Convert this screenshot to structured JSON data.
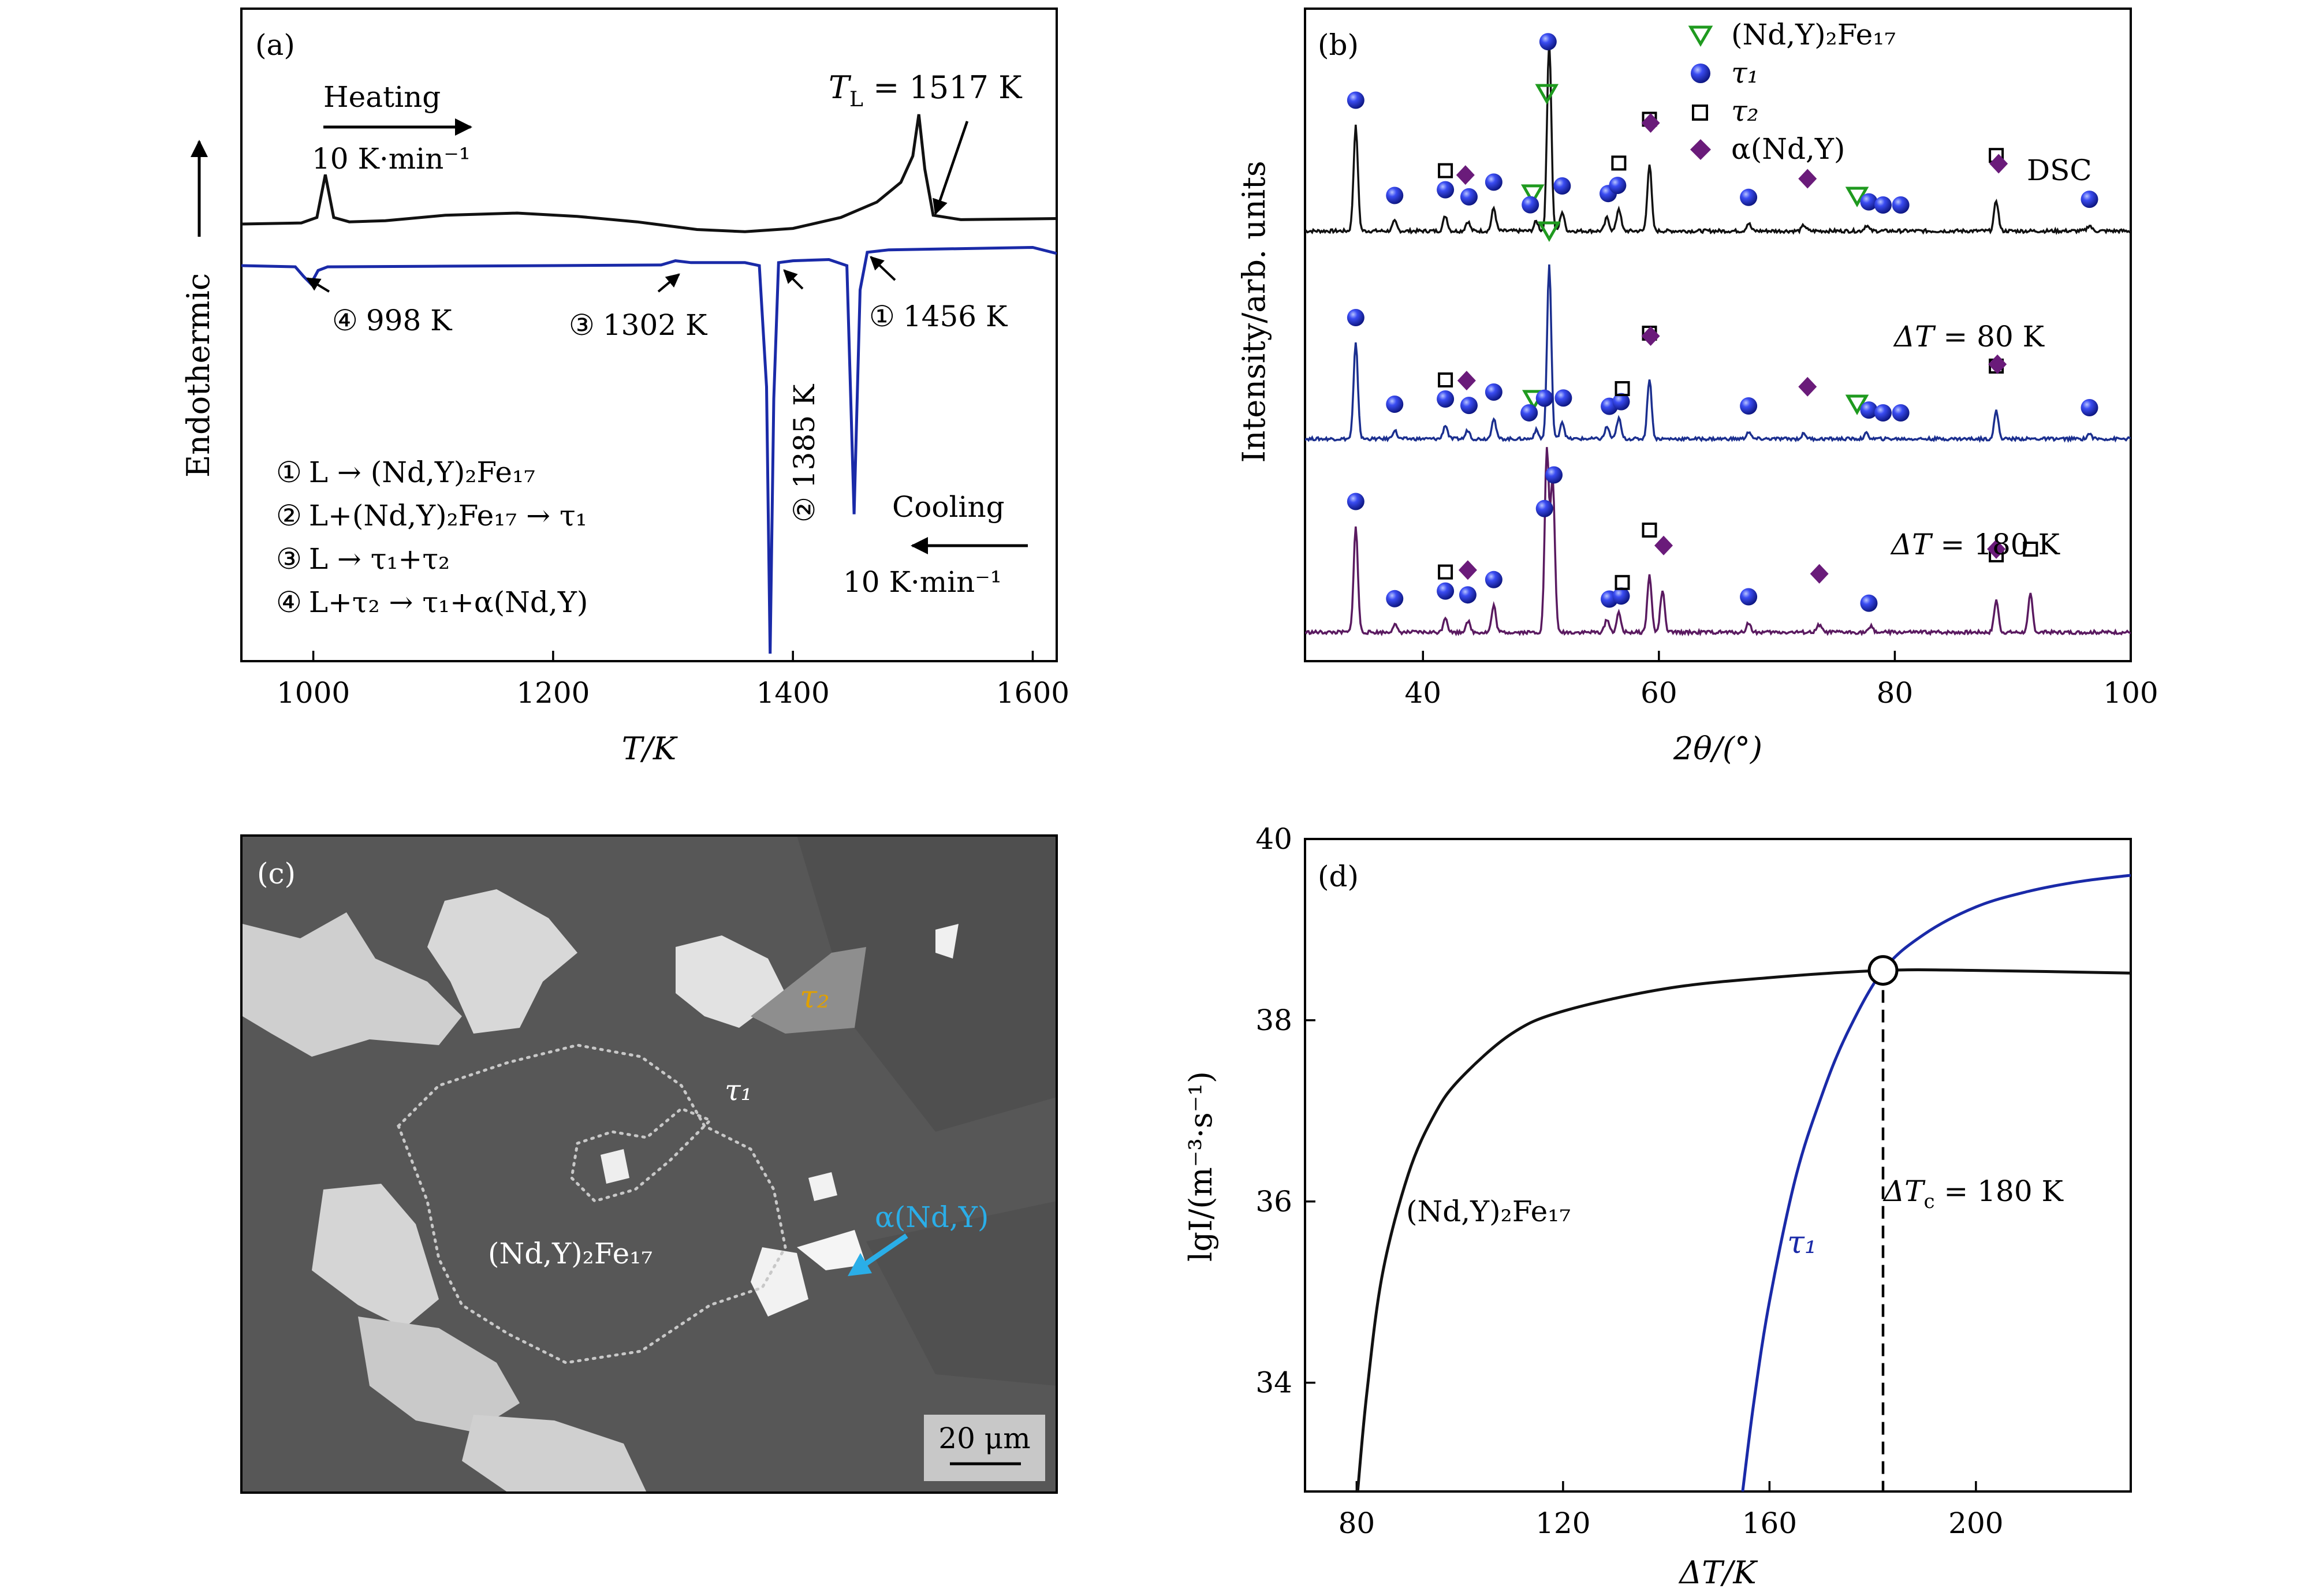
{
  "figure": "Four-panel figure: (a) DSC curves, (b) XRD patterns, (c) SEM micrograph, (d) nucleation rate vs undercooling",
  "chart_data": [
    {
      "id": "a",
      "type": "line",
      "panel_label": "(a)",
      "xlabel": "T/K",
      "ylabel": "Endothermic",
      "xlim": [
        940,
        1620
      ],
      "xticks": [
        1000,
        1200,
        1400,
        1600
      ],
      "xtick_labels": [
        "1000",
        "1200",
        "1400",
        "1600"
      ],
      "heating": {
        "title": "Heating",
        "rate": "10 K·min⁻¹",
        "color": "#111111"
      },
      "cooling": {
        "title": "Cooling",
        "rate": "10 K·min⁻¹",
        "color": "#1a2aa8"
      },
      "tl_label": "T",
      "tl_sub": "L",
      "tl_value": " = 1517 K",
      "series": [
        {
          "name": "Heating",
          "color": "#111111",
          "x": [
            940,
            990,
            1003,
            1010,
            1017,
            1030,
            1060,
            1110,
            1170,
            1220,
            1270,
            1320,
            1360,
            1400,
            1440,
            1470,
            1490,
            1500,
            1505,
            1510,
            1517,
            1540,
            1620
          ],
          "y": [
            0.0,
            0.01,
            0.06,
            0.45,
            0.06,
            0.02,
            0.03,
            0.08,
            0.1,
            0.07,
            0.02,
            -0.05,
            -0.07,
            -0.04,
            0.06,
            0.2,
            0.38,
            0.62,
            1.0,
            0.5,
            0.08,
            0.04,
            0.05
          ]
        },
        {
          "name": "Cooling",
          "color": "#1a2aa8",
          "x": [
            940,
            985,
            992,
            998,
            1004,
            1012,
            1100,
            1200,
            1290,
            1302,
            1315,
            1360,
            1372,
            1378,
            1381,
            1384,
            1388,
            1400,
            1430,
            1445,
            1451,
            1456,
            1462,
            1480,
            1600,
            1620
          ],
          "y": [
            0.0,
            -0.02,
            -0.18,
            -0.3,
            -0.08,
            -0.02,
            -0.01,
            0.0,
            0.01,
            0.08,
            0.05,
            0.05,
            0.0,
            -2.0,
            -6.4,
            -2.2,
            0.05,
            0.08,
            0.1,
            0.0,
            -4.1,
            -0.4,
            0.22,
            0.26,
            0.3,
            0.2
          ]
        }
      ],
      "annotations": [
        {
          "marker": "④",
          "text": "998 K",
          "at": 998
        },
        {
          "marker": "③",
          "text": "1302 K",
          "at": 1302
        },
        {
          "marker": "②",
          "text": "1385 K",
          "at": 1385
        },
        {
          "marker": "①",
          "text": "1456 K",
          "at": 1456
        }
      ],
      "reactions": [
        {
          "marker": "①",
          "text": "L → (Nd,Y)₂Fe₁₇"
        },
        {
          "marker": "②",
          "text": "L+(Nd,Y)₂Fe₁₇ → τ₁"
        },
        {
          "marker": "③",
          "text": "L → τ₁+τ₂"
        },
        {
          "marker": "④",
          "text": "L+τ₂ → τ₁+α(Nd,Y)"
        }
      ]
    },
    {
      "id": "b",
      "type": "line",
      "panel_label": "(b)",
      "xlabel": "2θ/(°)",
      "ylabel": "Intensity/arb. units",
      "xlim": [
        30,
        100
      ],
      "xticks": [
        40,
        60,
        80,
        100
      ],
      "xtick_labels": [
        "40",
        "60",
        "80",
        "100"
      ],
      "legend": [
        {
          "symbol": "triangle",
          "label": "(Nd,Y)₂Fe₁₇",
          "color": "#1f9a1f"
        },
        {
          "symbol": "sphere",
          "label": "τ₁",
          "color": "#1e2ee6"
        },
        {
          "symbol": "square",
          "label": "τ₂",
          "color": "#000000"
        },
        {
          "symbol": "diamond",
          "label": "α(Nd,Y)",
          "color": "#6a1b7a"
        }
      ],
      "series": [
        {
          "name": "DSC",
          "color": "#111111",
          "offset": 2.0,
          "peaks": [
            [
              34.3,
              0.55
            ],
            [
              37.6,
              0.05
            ],
            [
              41.9,
              0.08
            ],
            [
              43.8,
              0.05
            ],
            [
              46.0,
              0.12
            ],
            [
              49.6,
              0.05
            ],
            [
              50.7,
              1.0
            ],
            [
              51.8,
              0.1
            ],
            [
              55.6,
              0.07
            ],
            [
              56.6,
              0.12
            ],
            [
              59.2,
              0.35
            ],
            [
              67.6,
              0.04
            ],
            [
              72.3,
              0.03
            ],
            [
              77.6,
              0.03
            ],
            [
              88.6,
              0.16
            ],
            [
              96.5,
              0.03
            ]
          ],
          "markers": [
            {
              "phase": "triangle",
              "x": [
                50.5,
                49.3,
                76.8
              ]
            },
            {
              "phase": "sphere",
              "x": [
                34.3,
                37.6,
                41.9,
                43.9,
                46.0,
                49.1,
                50.6,
                51.8,
                55.7,
                56.5,
                67.6,
                77.8,
                79.0,
                80.5,
                96.5
              ]
            },
            {
              "phase": "square",
              "x": [
                41.9,
                56.6,
                59.2,
                88.6
              ]
            },
            {
              "phase": "diamond",
              "x": [
                43.6,
                59.3,
                72.6,
                88.8
              ]
            }
          ]
        },
        {
          "name": "ΔT = 80 K",
          "color": "#1b2f8f",
          "offset": 1.0,
          "peaks": [
            [
              34.3,
              0.55
            ],
            [
              37.6,
              0.05
            ],
            [
              41.9,
              0.08
            ],
            [
              43.8,
              0.05
            ],
            [
              46.0,
              0.12
            ],
            [
              49.6,
              0.05
            ],
            [
              50.7,
              1.0
            ],
            [
              51.8,
              0.1
            ],
            [
              55.6,
              0.07
            ],
            [
              56.6,
              0.12
            ],
            [
              59.2,
              0.35
            ],
            [
              67.6,
              0.04
            ],
            [
              72.3,
              0.03
            ],
            [
              77.6,
              0.03
            ],
            [
              88.6,
              0.16
            ],
            [
              96.5,
              0.03
            ]
          ],
          "markers": [
            {
              "phase": "triangle",
              "x": [
                50.7,
                49.4,
                76.8
              ]
            },
            {
              "phase": "sphere",
              "x": [
                34.3,
                37.6,
                41.9,
                43.9,
                46.0,
                49.0,
                50.3,
                51.9,
                55.8,
                56.8,
                67.6,
                77.8,
                79.0,
                80.5,
                96.5
              ]
            },
            {
              "phase": "square",
              "x": [
                41.9,
                56.9,
                59.2,
                88.6
              ]
            },
            {
              "phase": "diamond",
              "x": [
                43.7,
                59.3,
                72.6,
                88.7
              ]
            }
          ]
        },
        {
          "name": "ΔT = 180 K",
          "color": "#5a1a60",
          "offset": 0.0,
          "peaks": [
            [
              34.3,
              0.55
            ],
            [
              37.6,
              0.04
            ],
            [
              41.9,
              0.08
            ],
            [
              43.8,
              0.06
            ],
            [
              46.0,
              0.14
            ],
            [
              50.5,
              0.95
            ],
            [
              51.0,
              0.8
            ],
            [
              55.6,
              0.07
            ],
            [
              56.6,
              0.1
            ],
            [
              59.2,
              0.3
            ],
            [
              60.3,
              0.22
            ],
            [
              67.6,
              0.05
            ],
            [
              73.6,
              0.04
            ],
            [
              78.0,
              0.03
            ],
            [
              88.6,
              0.17
            ],
            [
              91.5,
              0.2
            ]
          ],
          "markers": [
            {
              "phase": "sphere",
              "x": [
                34.3,
                37.6,
                41.9,
                43.8,
                46.0,
                50.3,
                51.1,
                55.8,
                56.8,
                67.6,
                77.8
              ]
            },
            {
              "phase": "square",
              "x": [
                41.9,
                56.9,
                59.2,
                88.6,
                91.5
              ]
            },
            {
              "phase": "diamond",
              "x": [
                43.8,
                60.4,
                73.6,
                88.6
              ]
            }
          ]
        }
      ],
      "labels": {
        "dsc": "DSC",
        "dt_prefix": "ΔT",
        "dt80": " = 80 K",
        "dt180": " = 180 K"
      }
    },
    {
      "id": "d",
      "type": "line",
      "panel_label": "(d)",
      "xlabel": "ΔT/K",
      "ylabel": "lgI/(m⁻³·s⁻¹)",
      "xlim": [
        70,
        230
      ],
      "ylim": [
        32.8,
        40
      ],
      "xticks": [
        80,
        120,
        160,
        200
      ],
      "xtick_labels": [
        "80",
        "120",
        "160",
        "200"
      ],
      "yticks": [
        34,
        36,
        38,
        40
      ],
      "ytick_labels": [
        "34",
        "36",
        "38",
        "40"
      ],
      "series": [
        {
          "name": "(Nd,Y)₂Fe₁₇",
          "color": "#111111",
          "x": [
            80.2,
            82,
            85,
            90,
            95,
            100,
            110,
            120,
            140,
            160,
            182,
            200,
            230
          ],
          "y": [
            32.8,
            33.9,
            35.2,
            36.3,
            36.95,
            37.35,
            37.85,
            38.1,
            38.35,
            38.47,
            38.55,
            38.55,
            38.52
          ]
        },
        {
          "name": "τ₁",
          "color": "#1a2aa8",
          "x": [
            154.8,
            157,
            160,
            165,
            170,
            175,
            182,
            190,
            200,
            210,
            220,
            230
          ],
          "y": [
            32.8,
            33.8,
            34.9,
            36.25,
            37.15,
            37.85,
            38.55,
            38.95,
            39.25,
            39.42,
            39.53,
            39.6
          ]
        }
      ],
      "intersection": {
        "x": 182,
        "y": 38.55
      },
      "critical_label": "ΔT",
      "critical_sub": "c",
      "critical_value": " = 180 K",
      "curve_labels": {
        "matrix": "(Nd,Y)₂Fe₁₇",
        "tau": "τ₁"
      }
    }
  ],
  "micrograph": {
    "panel_label": "(c)",
    "labels": {
      "tau2": "τ₂",
      "tau1": "τ₁",
      "alpha": "α(Nd,Y)",
      "matrix": "(Nd,Y)₂Fe₁₇"
    },
    "scalebar": "20 μm"
  },
  "colors": {
    "heating": "#111111",
    "cooling": "#1a2aa8",
    "alpha_label": "#2aaee8",
    "tau2_label": "#e0a000",
    "sem_bg": "#585858"
  }
}
